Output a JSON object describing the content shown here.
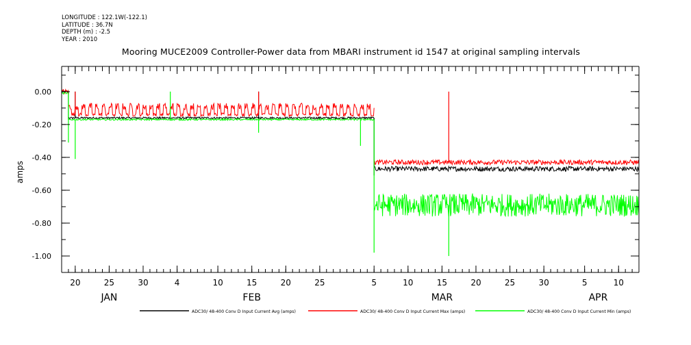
{
  "header": {
    "longitude": "LONGITUDE : 122.1W(-122.1)",
    "latitude": "LATITUDE : 36.7N",
    "depth": "DEPTH (m) : -2.5",
    "year": "YEAR : 2010"
  },
  "chart_data": {
    "type": "line",
    "title": "Mooring MUCE2009 Controller-Power data from MBARI instrument id 1547 at original sampling intervals",
    "ylabel": "amps",
    "xlabel": "",
    "xlim": [
      "2010-01-18",
      "2010-04-13"
    ],
    "ylim": [
      -1.1,
      0.12
    ],
    "y_ticks": [
      {
        "value": 0.0,
        "label": "0.00"
      },
      {
        "value": -0.2,
        "label": "-0.20"
      },
      {
        "value": -0.4,
        "label": "-0.40"
      },
      {
        "value": -0.6,
        "label": "-0.60"
      },
      {
        "value": -0.8,
        "label": "-0.80"
      },
      {
        "value": -1.0,
        "label": "-1.00"
      }
    ],
    "x_day_ticks": [
      {
        "date": "2010-01-20",
        "label": "20"
      },
      {
        "date": "2010-01-25",
        "label": "25"
      },
      {
        "date": "2010-01-30",
        "label": "30"
      },
      {
        "date": "2010-02-04",
        "label": "4"
      },
      {
        "date": "2010-02-10",
        "label": "10"
      },
      {
        "date": "2010-02-15",
        "label": "15"
      },
      {
        "date": "2010-02-20",
        "label": "20"
      },
      {
        "date": "2010-02-25",
        "label": "25"
      },
      {
        "date": "2010-03-05",
        "label": "5"
      },
      {
        "date": "2010-03-10",
        "label": "10"
      },
      {
        "date": "2010-03-15",
        "label": "15"
      },
      {
        "date": "2010-03-20",
        "label": "20"
      },
      {
        "date": "2010-03-25",
        "label": "25"
      },
      {
        "date": "2010-03-30",
        "label": "30"
      },
      {
        "date": "2010-04-05",
        "label": "5"
      },
      {
        "date": "2010-04-10",
        "label": "10"
      }
    ],
    "month_labels": [
      {
        "date": "2010-01-25",
        "label": "JAN"
      },
      {
        "date": "2010-02-15",
        "label": "FEB"
      },
      {
        "date": "2010-03-15",
        "label": "MAR"
      },
      {
        "date": "2010-04-07",
        "label": "APR"
      }
    ],
    "series": [
      {
        "name": "ADC30/ 48-400 Conv D Input Current Avg (amps)",
        "color": "#000000",
        "segments": [
          {
            "start": "2010-01-18",
            "end": "2010-01-19",
            "level": 0.0
          },
          {
            "start": "2010-01-19",
            "end": "2010-03-05",
            "level": -0.16
          },
          {
            "start": "2010-03-05",
            "end": "2010-04-13",
            "level": -0.47
          }
        ],
        "events": [
          {
            "date": "2010-01-19",
            "value": -0.17
          },
          {
            "date": "2010-01-20",
            "value": 0.0
          },
          {
            "date": "2010-02-16",
            "value": 0.0
          },
          {
            "date": "2010-03-05",
            "value": -0.51
          }
        ]
      },
      {
        "name": "ADC30/ 48-400 Conv D Input Current Max (amps)",
        "color": "#ff0000",
        "segments": [
          {
            "start": "2010-01-18",
            "end": "2010-01-19",
            "level": 0.0
          },
          {
            "start": "2010-01-19",
            "end": "2010-03-05",
            "level": -0.14
          },
          {
            "start": "2010-03-05",
            "end": "2010-04-13",
            "level": -0.43
          }
        ],
        "events": [
          {
            "date": "2010-01-20",
            "value": 0.0
          },
          {
            "date": "2010-02-16",
            "value": 0.0
          },
          {
            "date": "2010-03-16",
            "value": 0.0
          }
        ]
      },
      {
        "name": "ADC30/ 48-400 Conv D Input Current Min (amps)",
        "color": "#00ff00",
        "segments": [
          {
            "start": "2010-01-18",
            "end": "2010-01-19",
            "level": -0.01
          },
          {
            "start": "2010-01-19",
            "end": "2010-03-05",
            "level": -0.17
          },
          {
            "start": "2010-03-05",
            "end": "2010-04-13",
            "level": -0.69
          }
        ],
        "events": [
          {
            "date": "2010-01-19",
            "value": -0.31
          },
          {
            "date": "2010-01-20",
            "value": -0.41
          },
          {
            "date": "2010-02-03",
            "value": 0.0
          },
          {
            "date": "2010-02-16",
            "value": -0.25
          },
          {
            "date": "2010-03-03",
            "value": -0.33
          },
          {
            "date": "2010-03-05",
            "value": -0.98
          },
          {
            "date": "2010-03-16",
            "value": -1.0
          }
        ]
      }
    ],
    "grid": false,
    "legend_placement": "bottom"
  }
}
